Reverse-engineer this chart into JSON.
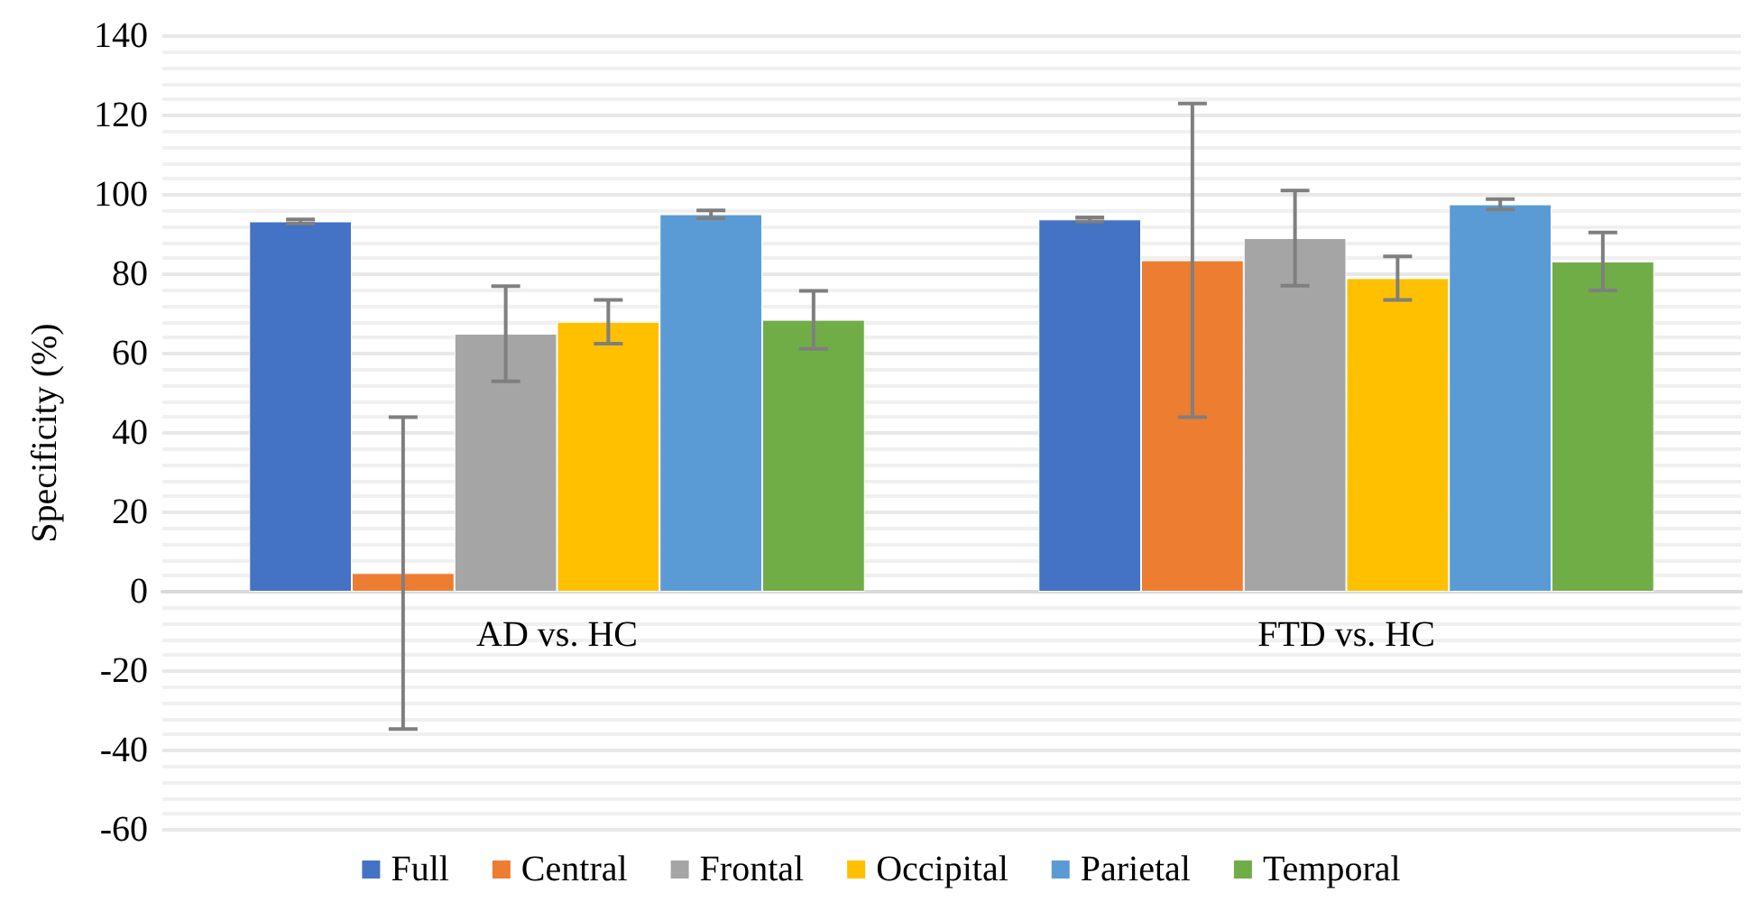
{
  "chart_data": {
    "type": "bar",
    "ylabel": "Specificity (%)",
    "categories": [
      "AD vs. HC",
      "FTD vs. HC"
    ],
    "series": [
      {
        "name": "Full",
        "color": "#4472c4",
        "values": [
          93.3,
          93.8
        ],
        "errors": [
          0.5,
          0.5
        ]
      },
      {
        "name": "Central",
        "color": "#ed7d31",
        "values": [
          4.7,
          83.5
        ],
        "errors": [
          39.3,
          39.5
        ]
      },
      {
        "name": "Frontal",
        "color": "#a5a5a5",
        "values": [
          65,
          89.1
        ],
        "errors": [
          12,
          12
        ]
      },
      {
        "name": "Occipital",
        "color": "#ffc000",
        "values": [
          68,
          79
        ],
        "errors": [
          5.5,
          5.5
        ]
      },
      {
        "name": "Parietal",
        "color": "#5b9bd5",
        "values": [
          95.1,
          97.6
        ],
        "errors": [
          1,
          1.3
        ]
      },
      {
        "name": "Temporal",
        "color": "#70ad47",
        "values": [
          68.5,
          83.2
        ],
        "errors": [
          7.3,
          7.3
        ]
      }
    ],
    "ylim": [
      -60,
      140
    ],
    "yticks": [
      -60,
      -40,
      -20,
      0,
      20,
      40,
      60,
      80,
      100,
      120,
      140
    ],
    "grid": "y",
    "legend": "bottom"
  }
}
